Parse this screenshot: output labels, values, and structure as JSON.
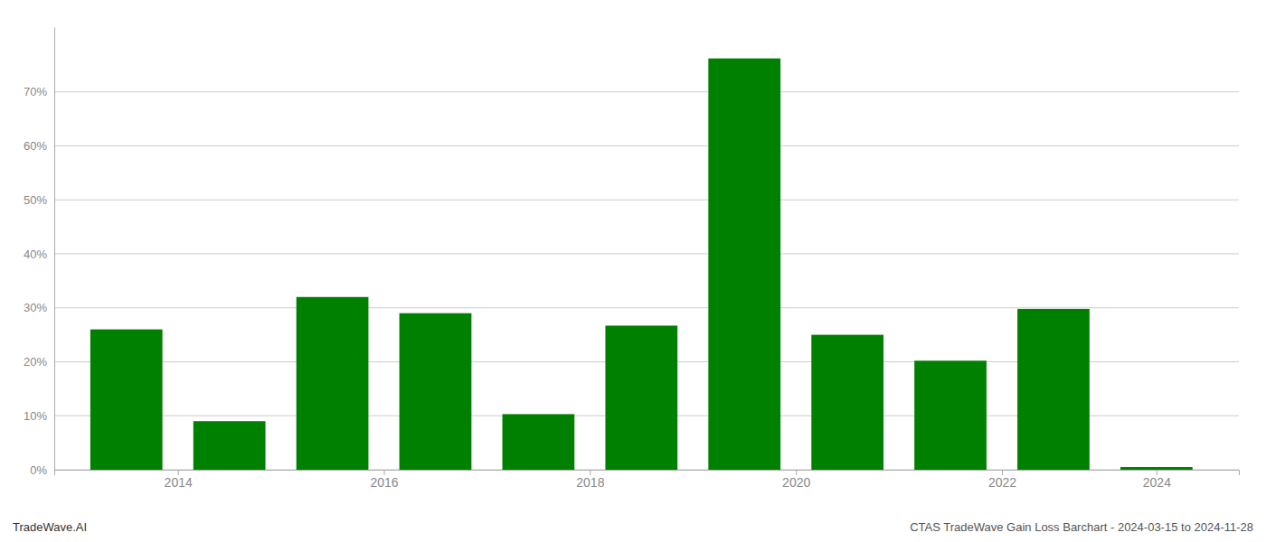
{
  "chart_data": {
    "type": "bar",
    "title": "CTAS TradeWave Gain Loss Barchart - 2024-03-15 to 2024-11-28",
    "annotations": [
      {
        "text": "TradeWave.AI"
      }
    ],
    "x": [
      2014,
      2015,
      2016,
      2017,
      2018,
      2019,
      2020,
      2021,
      2022,
      2023,
      2024
    ],
    "values": [
      0.26,
      0.09,
      0.32,
      0.29,
      0.103,
      0.267,
      0.762,
      0.25,
      0.202,
      0.298,
      0.005
    ],
    "color": "#008000",
    "xlim": [
      2013.3,
      2024.8
    ],
    "xticks": [
      {
        "value": 2014.5,
        "label": "2014"
      },
      {
        "value": 2016.5,
        "label": "2016"
      },
      {
        "value": 2018.5,
        "label": "2018"
      },
      {
        "value": 2020.5,
        "label": "2020"
      },
      {
        "value": 2022.5,
        "label": "2022"
      },
      2024
    ],
    "ylim": [
      0,
      0.82
    ],
    "yticks": [
      {
        "value": 0.0,
        "label": "0%"
      },
      {
        "value": 0.1,
        "label": "10%"
      },
      {
        "value": 0.2,
        "label": "20%"
      },
      {
        "value": 0.3,
        "label": "30%"
      },
      {
        "value": 0.4,
        "label": "40%"
      },
      {
        "value": 0.5,
        "label": "50%"
      },
      {
        "value": 0.6,
        "label": "60%"
      },
      {
        "value": 0.7,
        "label": "70%"
      }
    ],
    "grid": true
  }
}
